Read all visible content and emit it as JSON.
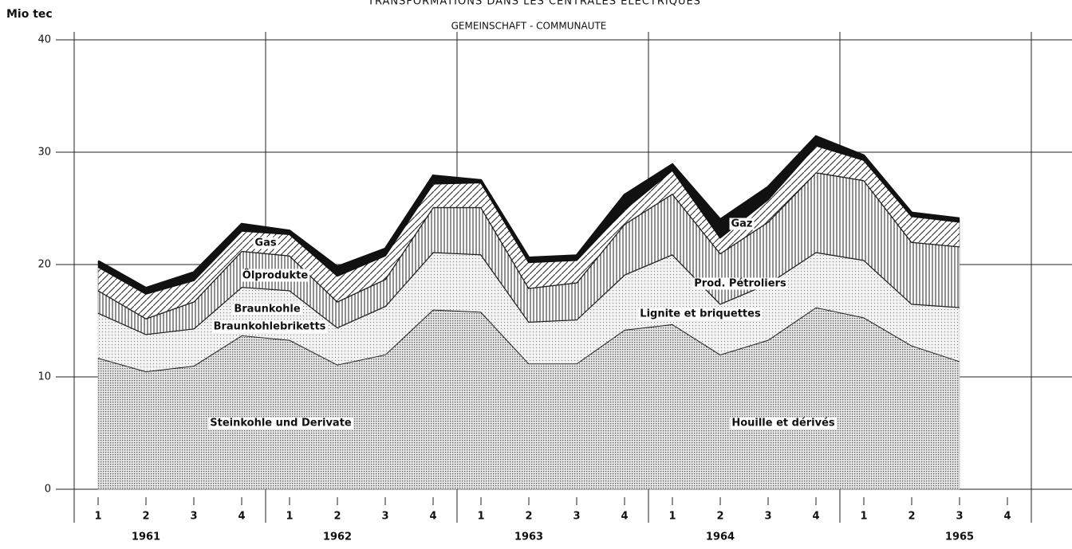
{
  "chart_data": {
    "type": "stacked_area",
    "title": "TRANSFORMATIONS DANS LES CENTRALES ELECTRIQUES",
    "subtitle": "GEMEINSCHAFT - COMMUNAUTE",
    "y_label": "Mio tec",
    "categories": [
      "1",
      "2",
      "3",
      "4",
      "1",
      "2",
      "3",
      "4",
      "1",
      "2",
      "3",
      "4",
      "1",
      "2",
      "3",
      "4",
      "1",
      "2",
      "3",
      "4"
    ],
    "years": [
      "1961",
      "1962",
      "1963",
      "1964",
      "1965"
    ],
    "series": [
      {
        "name": "Steinkohle und Derivate",
        "color": "#9a9a9a",
        "values": [
          11.7,
          10.5,
          11.0,
          13.7,
          13.3,
          11.1,
          12.0,
          16.0,
          15.8,
          11.2,
          11.2,
          14.2,
          14.7,
          12.0,
          13.3,
          16.2,
          15.3,
          12.8,
          11.4,
          null
        ]
      },
      {
        "name": "Braunkohlebriketts",
        "color": "#c8c8c8",
        "values": [
          4.0,
          3.3,
          3.3,
          4.3,
          4.4,
          3.3,
          4.3,
          5.1,
          5.1,
          3.7,
          3.9,
          4.9,
          6.2,
          4.5,
          5.0,
          4.9,
          5.1,
          3.7,
          4.8,
          null
        ]
      },
      {
        "name": "Braunkohle",
        "color": "#555555",
        "values": [
          2.0,
          1.4,
          2.4,
          3.2,
          3.1,
          2.3,
          2.4,
          4.0,
          4.2,
          3.0,
          3.3,
          4.5,
          5.4,
          4.5,
          5.5,
          7.1,
          7.1,
          5.5,
          5.4,
          null
        ]
      },
      {
        "name": "Ölprodukte",
        "color": "#444444",
        "values": [
          2.1,
          2.2,
          1.9,
          1.8,
          1.9,
          2.3,
          2.1,
          2.1,
          2.2,
          2.3,
          2.0,
          1.3,
          2.1,
          1.4,
          2.0,
          2.4,
          1.8,
          2.3,
          2.2,
          null
        ]
      },
      {
        "name": "Gas",
        "color": "#111111",
        "values": [
          0.5,
          0.5,
          0.7,
          0.6,
          0.3,
          0.8,
          0.6,
          0.7,
          0.2,
          0.4,
          0.4,
          1.3,
          0.5,
          1.6,
          1.1,
          0.8,
          0.4,
          0.3,
          0.3,
          null
        ]
      }
    ],
    "annotations": [
      "Gas",
      "Ölprodukte",
      "Braunkohle",
      "Braunkohlebriketts",
      "Steinkohle und Derivate",
      "Gaz",
      "Prod. Pétroliers",
      "Lignite et briquettes",
      "Houille et dérivés"
    ],
    "ylim": [
      0,
      40
    ],
    "yticks": [
      0,
      10,
      20,
      30,
      40
    ],
    "grid": true
  }
}
